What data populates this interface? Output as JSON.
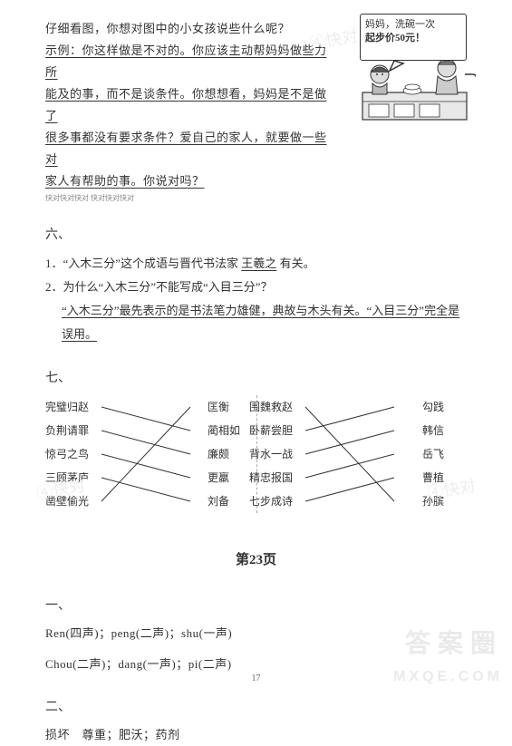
{
  "q5": {
    "line1": "仔细看图，你想对图中的小女孩说些什么呢？",
    "line2": "示例：你这样做是不对的。你应该主动帮妈妈做些力所",
    "line3": "能及的事，而不是谈条件。你想想看，妈妈是不是做了",
    "line4": "很多事都没有要求条件？爱自己的家人，就要做一些对",
    "line5": "家人有帮助的事。你说对吗？",
    "tiny": "快对快对快对\n快对快对快对",
    "speech_l1": "妈妈，洗碗一次",
    "speech_l2": "起步价50元！"
  },
  "q6": {
    "title": "六、",
    "item1_pre": "1．“入木三分”这个成语与晋代书法家",
    "item1_fill": "王羲之",
    "item1_post": "有关。",
    "item2_q": "2．为什么“入木三分”不能写成“入目三分”？",
    "item2_a1": "“入木三分”最先表示的是书法笔力雄健，典故与木头有关。“入目三分”完全是",
    "item2_a2": "误用。"
  },
  "q7": {
    "title": "七、",
    "groupA": {
      "left": [
        "完璧归赵",
        "负荆请罪",
        "惊弓之鸟",
        "三顾茅庐",
        "凿壁偷光"
      ],
      "right": [
        "匡衡",
        "蔺相如",
        "廉颇",
        "更羸",
        "刘备"
      ],
      "edges": [
        [
          0,
          1
        ],
        [
          1,
          2
        ],
        [
          2,
          3
        ],
        [
          3,
          4
        ],
        [
          4,
          0
        ]
      ],
      "line_color": "#333333",
      "line_width": 1
    },
    "groupB": {
      "left": [
        "围魏救赵",
        "卧薪尝胆",
        "背水一战",
        "精忠报国",
        "七步成诗"
      ],
      "right": [
        "勾践",
        "韩信",
        "岳飞",
        "曹植",
        "孙膑"
      ],
      "edges": [
        [
          0,
          4
        ],
        [
          1,
          0
        ],
        [
          2,
          1
        ],
        [
          3,
          2
        ],
        [
          4,
          3
        ]
      ],
      "line_color": "#333333",
      "line_width": 1
    }
  },
  "page23": {
    "heading": "第23页",
    "sec1": "一、",
    "row1": "Ren(四声)；peng(二声)；shu(一声)",
    "row2": "Chou(二声)；dang(一声)；pi(二声)",
    "sec2": "二、",
    "row3": "损坏　尊重；肥沃；药剂"
  },
  "footer": "17",
  "watermark1": "答案圈",
  "watermark2": "MXQE.COM",
  "faint_wm": "快对"
}
